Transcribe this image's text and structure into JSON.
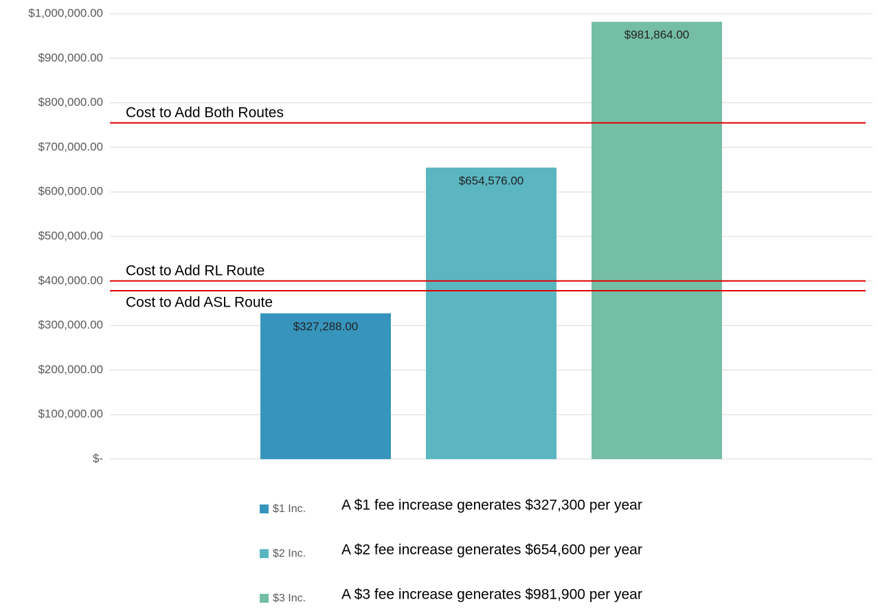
{
  "chart_data": {
    "type": "bar",
    "categories": [
      null
    ],
    "series": [
      {
        "name": "$1 Inc.",
        "color": "#3795bd",
        "values": [
          327288
        ],
        "value_labels": [
          "$327,288.00"
        ],
        "note": "A $1 fee increase generates $327,300 per year"
      },
      {
        "name": "$2 Inc.",
        "color": "#5bb6c1",
        "values": [
          654576
        ],
        "value_labels": [
          "$654,576.00"
        ],
        "note": "A $2 fee increase generates $654,600 per year"
      },
      {
        "name": "$3 Inc.",
        "color": "#75bea6",
        "values": [
          981864
        ],
        "value_labels": [
          "$981,864.00"
        ],
        "note": "A $3 fee increase generates $981,900 per year"
      }
    ],
    "reference_lines": [
      {
        "label": "Cost to Add Both Routes",
        "value": 755000,
        "color": "#e00000"
      },
      {
        "label": "Cost to Add RL Route",
        "value": 400000,
        "color": "#e00000"
      },
      {
        "label": "Cost to Add ASL Route",
        "value": 378000,
        "color": "#e00000"
      }
    ],
    "ylim": [
      0,
      1000000
    ],
    "yticks": [
      {
        "value": 0,
        "label": "$-"
      },
      {
        "value": 100000,
        "label": "$100,000.00"
      },
      {
        "value": 200000,
        "label": "$200,000.00"
      },
      {
        "value": 300000,
        "label": "$300,000.00"
      },
      {
        "value": 400000,
        "label": "$400,000.00"
      },
      {
        "value": 500000,
        "label": "$500,000.00"
      },
      {
        "value": 600000,
        "label": "$600,000.00"
      },
      {
        "value": 700000,
        "label": "$700,000.00"
      },
      {
        "value": 800000,
        "label": "$800,000.00"
      },
      {
        "value": 900000,
        "label": "$900,000.00"
      },
      {
        "value": 1000000,
        "label": "$1,000,000.00"
      }
    ],
    "grid": true,
    "legend": "bottom"
  }
}
